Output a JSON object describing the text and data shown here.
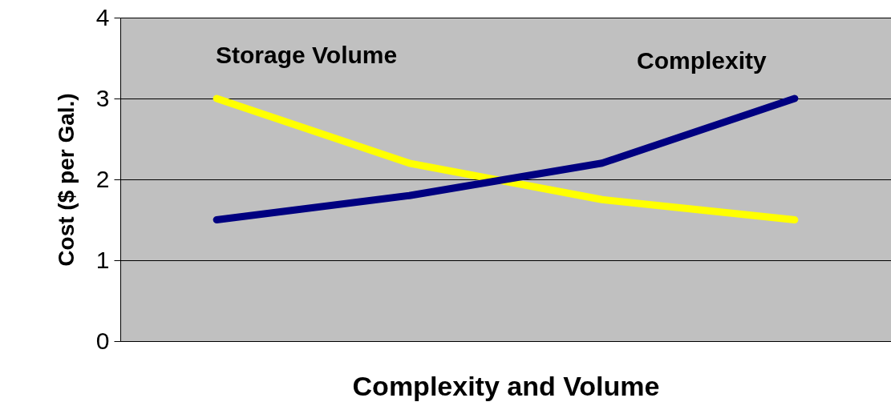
{
  "chart_data": {
    "type": "line",
    "xlabel": "Complexity and Volume",
    "ylabel": "Cost ($ per Gal.)",
    "categories": [
      null,
      null,
      null,
      null
    ],
    "series": [
      {
        "name": "Storage Volume",
        "color": "#ffff00",
        "values": [
          3.0,
          2.2,
          1.75,
          1.5
        ]
      },
      {
        "name": "Complexity",
        "color": "#000080",
        "values": [
          1.5,
          1.8,
          2.2,
          3.0
        ]
      }
    ],
    "ylim": [
      0,
      4
    ],
    "yticks": [
      0,
      1,
      2,
      3,
      4
    ],
    "grid": "y",
    "legend": false,
    "tick_labels": "y",
    "marker": "none",
    "line_style": "solid"
  }
}
